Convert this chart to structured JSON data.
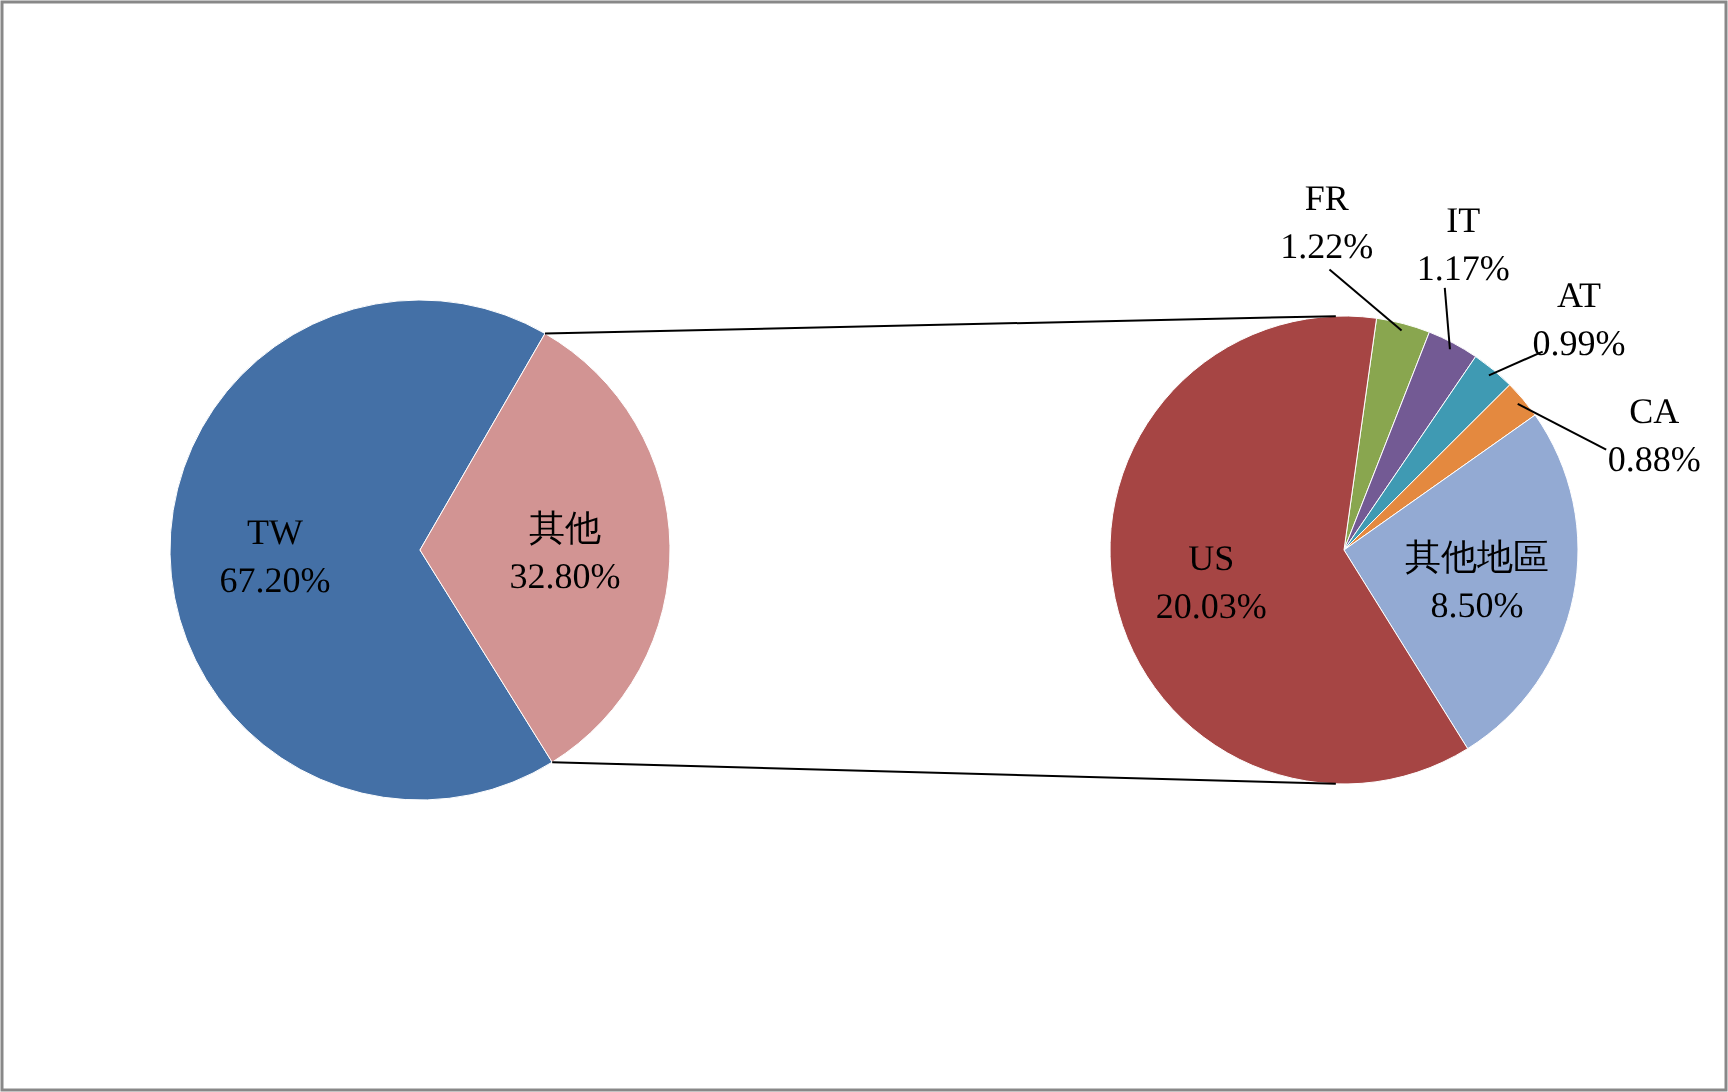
{
  "chart_data": [
    {
      "type": "pie",
      "categories": [
        "TW",
        "其他"
      ],
      "values": [
        67.2,
        32.8
      ],
      "colors": [
        "#4470a6",
        "#d29493"
      ],
      "value_labels": [
        "67.20%",
        "32.80%"
      ]
    },
    {
      "type": "pie",
      "categories": [
        "FR",
        "IT",
        "AT",
        "CA",
        "其他地區",
        "US"
      ],
      "values": [
        1.22,
        1.17,
        0.99,
        0.88,
        8.5,
        20.03
      ],
      "colors": [
        "#89a64f",
        "#735a94",
        "#3f9ab3",
        "#e4893f",
        "#93aad3",
        "#a64544"
      ],
      "value_labels": [
        "1.22%",
        "1.17%",
        "0.99%",
        "0.88%",
        "8.50%",
        "20.03%"
      ]
    }
  ]
}
